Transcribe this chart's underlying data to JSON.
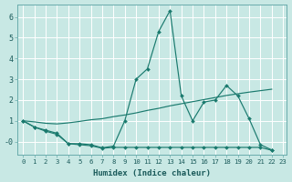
{
  "xlabel": "Humidex (Indice chaleur)",
  "bg_color": "#c8e8e4",
  "grid_color": "#ffffff",
  "line_color": "#1a7a6e",
  "xlim_min": -0.5,
  "xlim_max": 23.3,
  "ylim_min": -0.65,
  "ylim_max": 6.6,
  "xtick_vals": [
    0,
    1,
    2,
    3,
    4,
    5,
    6,
    7,
    8,
    9,
    10,
    11,
    12,
    13,
    14,
    15,
    16,
    17,
    18,
    19,
    20,
    21,
    22,
    23
  ],
  "xtick_labels": [
    "0",
    "1",
    "2",
    "3",
    "4",
    "5",
    "6",
    "7",
    "8",
    "9",
    "10",
    "11",
    "12",
    "13",
    "14",
    "15",
    "16",
    "17",
    "18",
    "19",
    "20",
    "21",
    "22",
    "23"
  ],
  "ytick_vals": [
    0,
    1,
    2,
    3,
    4,
    5,
    6
  ],
  "ytick_labels": [
    "-0",
    "1",
    "2",
    "3",
    "4",
    "5",
    "6"
  ],
  "line1_x": [
    0,
    1,
    2,
    3,
    4,
    5,
    6,
    7,
    8,
    9,
    10,
    11,
    12,
    13,
    14,
    15,
    16,
    17,
    18,
    19,
    20,
    21,
    22
  ],
  "line1_y": [
    1.0,
    0.7,
    0.55,
    0.4,
    -0.1,
    -0.1,
    -0.15,
    -0.3,
    -0.22,
    1.0,
    3.0,
    3.5,
    5.3,
    6.3,
    2.2,
    1.0,
    1.9,
    2.0,
    2.7,
    2.2,
    1.1,
    -0.15,
    -0.4
  ],
  "line2_x": [
    0,
    1,
    2,
    3,
    4,
    5,
    6,
    7,
    8,
    9,
    10,
    11,
    12,
    13,
    14,
    15,
    16,
    17,
    18,
    19,
    20,
    21,
    22
  ],
  "line2_y": [
    1.0,
    0.7,
    0.5,
    0.35,
    -0.1,
    -0.15,
    -0.2,
    -0.32,
    -0.28,
    -0.28,
    -0.28,
    -0.28,
    -0.28,
    -0.28,
    -0.28,
    -0.28,
    -0.28,
    -0.28,
    -0.28,
    -0.28,
    -0.28,
    -0.28,
    -0.42
  ],
  "line3_x": [
    0,
    1,
    2,
    3,
    4,
    5,
    6,
    7,
    8,
    9,
    10,
    11,
    12,
    13,
    14,
    15,
    16,
    17,
    18,
    19,
    20,
    21,
    22
  ],
  "line3_y": [
    1.0,
    0.95,
    0.88,
    0.85,
    0.9,
    0.97,
    1.05,
    1.1,
    1.2,
    1.28,
    1.38,
    1.5,
    1.6,
    1.72,
    1.82,
    1.92,
    2.02,
    2.12,
    2.22,
    2.3,
    2.38,
    2.45,
    2.52
  ]
}
